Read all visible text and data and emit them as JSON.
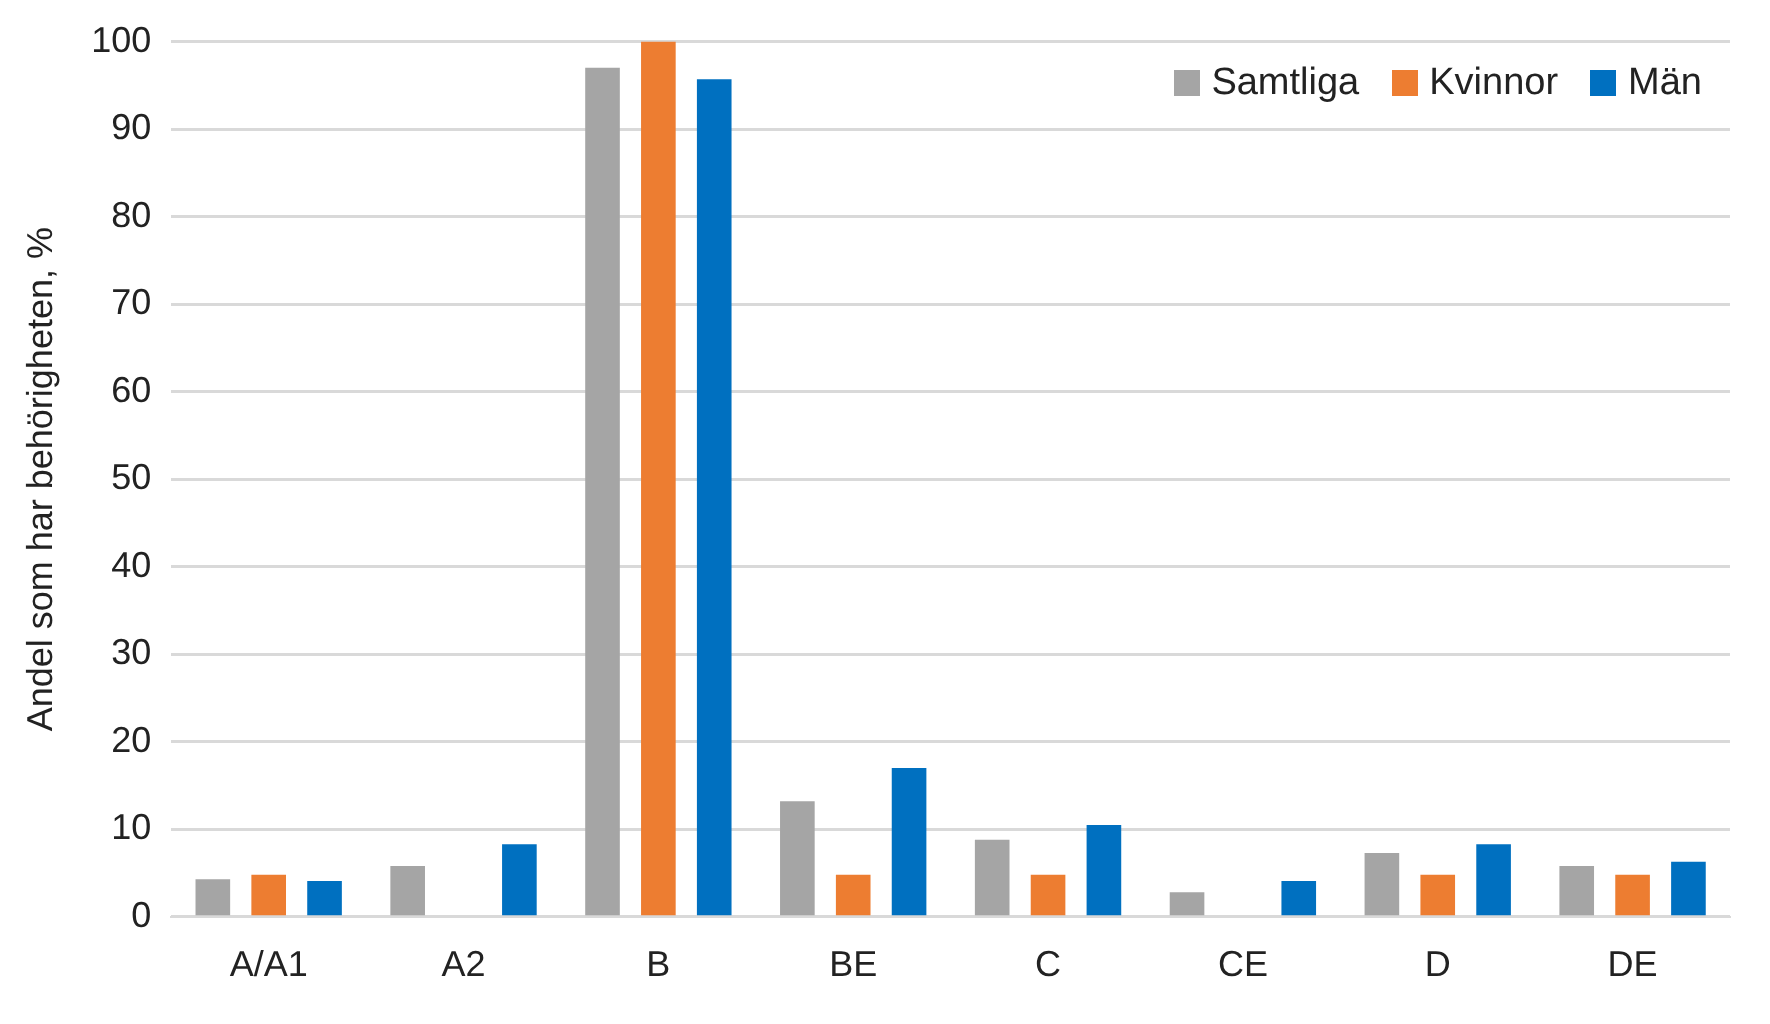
{
  "chart_data": {
    "type": "bar",
    "ylabel": "Andel som har behörigheten, %",
    "categories": [
      "A/A1",
      "A2",
      "B",
      "BE",
      "C",
      "CE",
      "D",
      "DE"
    ],
    "series": [
      {
        "name": "Samtliga",
        "color": "#a5a5a5",
        "values": [
          4.3,
          5.8,
          97,
          13.2,
          8.8,
          2.8,
          7.3,
          5.8
        ]
      },
      {
        "name": "Kvinnor",
        "color": "#ed7d31",
        "values": [
          4.8,
          null,
          100,
          4.8,
          4.8,
          null,
          4.8,
          4.8
        ]
      },
      {
        "name": "Män",
        "color": "#0070c0",
        "values": [
          4.1,
          8.3,
          95.7,
          17,
          10.5,
          4.1,
          8.3,
          6.3
        ]
      }
    ],
    "ylim": [
      0,
      100
    ],
    "yticks": [
      0,
      10,
      20,
      30,
      40,
      50,
      60,
      70,
      80,
      90,
      100
    ],
    "grid": "y",
    "legend": "top right"
  }
}
